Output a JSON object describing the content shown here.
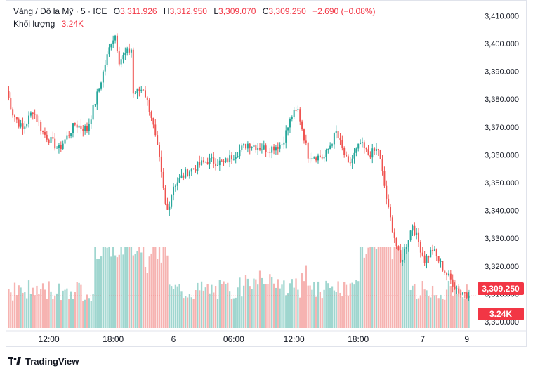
{
  "legend": {
    "title": "Vàng / Đô la Mỹ · 5 · ICE",
    "open_key": "O",
    "open": "3,311.926",
    "high_key": "H",
    "high": "3,312.950",
    "low_key": "L",
    "low": "3,309.070",
    "close_key": "C",
    "close": "3,309.250",
    "change": "−2.690 (−0.08%)",
    "volume_label": "Khối lượng",
    "volume": "3.24K"
  },
  "price_tag": "3,309.250",
  "volume_tag": "3.24K",
  "footer": {
    "brand": "TradingView"
  },
  "colors": {
    "up": "#26a69a",
    "down": "#ef5350",
    "up_vol": "#9fd6cf",
    "down_vol": "#f6b3b1",
    "tag": "#f23645"
  },
  "chart_data": {
    "type": "candlestick",
    "title": "Vàng / Đô la Mỹ · 5 · ICE",
    "y_range": [
      3300,
      3412
    ],
    "y_ticks": [
      "3,300.000",
      "3,310.000",
      "3,320.000",
      "3,330.000",
      "3,340.000",
      "3,350.000",
      "3,360.000",
      "3,370.000",
      "3,380.000",
      "3,390.000",
      "3,400.000",
      "3,410.000"
    ],
    "y_tick_values": [
      3300,
      3310,
      3320,
      3330,
      3340,
      3350,
      3360,
      3370,
      3380,
      3390,
      3400,
      3410
    ],
    "x_ticks": [
      "12:00",
      "18:00",
      "6",
      "06:00",
      "12:00",
      "18:00",
      "7",
      "9"
    ],
    "x_tick_index": [
      20,
      52,
      82,
      112,
      142,
      174,
      206,
      228
    ],
    "bar_count": 230,
    "anchors": [
      [
        0,
        3383
      ],
      [
        3,
        3375
      ],
      [
        8,
        3369
      ],
      [
        13,
        3376
      ],
      [
        18,
        3368
      ],
      [
        26,
        3362
      ],
      [
        34,
        3371
      ],
      [
        40,
        3369
      ],
      [
        46,
        3384
      ],
      [
        52,
        3401
      ],
      [
        54,
        3403
      ],
      [
        56,
        3394
      ],
      [
        62,
        3398
      ],
      [
        63,
        3382
      ],
      [
        68,
        3384
      ],
      [
        72,
        3374
      ],
      [
        76,
        3358
      ],
      [
        79,
        3342
      ],
      [
        80,
        3340
      ],
      [
        83,
        3349
      ],
      [
        90,
        3354
      ],
      [
        100,
        3358
      ],
      [
        108,
        3357
      ],
      [
        120,
        3364
      ],
      [
        130,
        3362
      ],
      [
        137,
        3364
      ],
      [
        142,
        3374
      ],
      [
        145,
        3376
      ],
      [
        150,
        3360
      ],
      [
        158,
        3359
      ],
      [
        164,
        3368
      ],
      [
        170,
        3356
      ],
      [
        176,
        3364
      ],
      [
        180,
        3360
      ],
      [
        185,
        3362
      ],
      [
        190,
        3340
      ],
      [
        196,
        3321
      ],
      [
        202,
        3335
      ],
      [
        208,
        3322
      ],
      [
        212,
        3326
      ],
      [
        218,
        3318
      ],
      [
        224,
        3312
      ],
      [
        226,
        3310
      ],
      [
        228,
        3311
      ],
      [
        230,
        3309.25
      ]
    ],
    "volume_scale_max": 30,
    "last_price": 3309.25,
    "last_volume": "3.24K"
  }
}
